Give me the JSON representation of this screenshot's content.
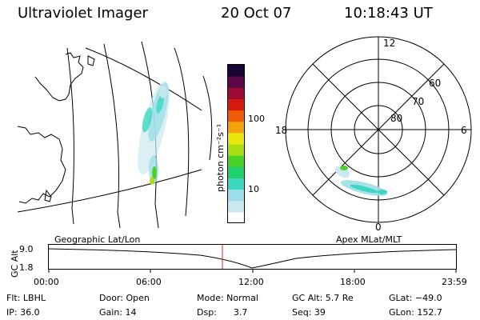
{
  "header": {
    "title": "Ultraviolet Imager",
    "date": "20 Oct 07",
    "time": "10:18:43 UT"
  },
  "colorbar": {
    "label": "photon cm⁻²s⁻¹",
    "tick_100": "100",
    "tick_10": "10",
    "colors": [
      "#ffffff",
      "#cce9ef",
      "#9ddfe8",
      "#3ed8c0",
      "#1fd06f",
      "#4bd12a",
      "#a8de12",
      "#e9e80c",
      "#f2a20a",
      "#ef5a08",
      "#d41a0e",
      "#9c0a35",
      "#5a0848",
      "#1a0535"
    ]
  },
  "polar": {
    "hour_12": "12",
    "hour_18": "18",
    "hour_6": "6",
    "hour_0": "0",
    "lat_60": "60",
    "lat_70": "70",
    "lat_80": "80"
  },
  "timeline": {
    "left_caption": "Geographic Lat/Lon",
    "right_caption": "Apex MLat/MLT",
    "axis_label": "GC Alt",
    "ytick_top": "9.0",
    "ytick_bottom": "1.8",
    "times": [
      "00:00",
      "06:00",
      "12:00",
      "18:00",
      "23:59"
    ]
  },
  "status": {
    "filter": "Flt: LBHL",
    "ip": "IP: 36.0",
    "door": "Door: Open",
    "gain": "Gain: 14",
    "mode": "Mode: Normal",
    "dsp": "Dsp:      3.7",
    "gc_alt": "GC Alt: 5.7 Re",
    "seq": "Seq: 39",
    "glat": "GLat: −49.0",
    "glon": "GLon: 152.7"
  }
}
